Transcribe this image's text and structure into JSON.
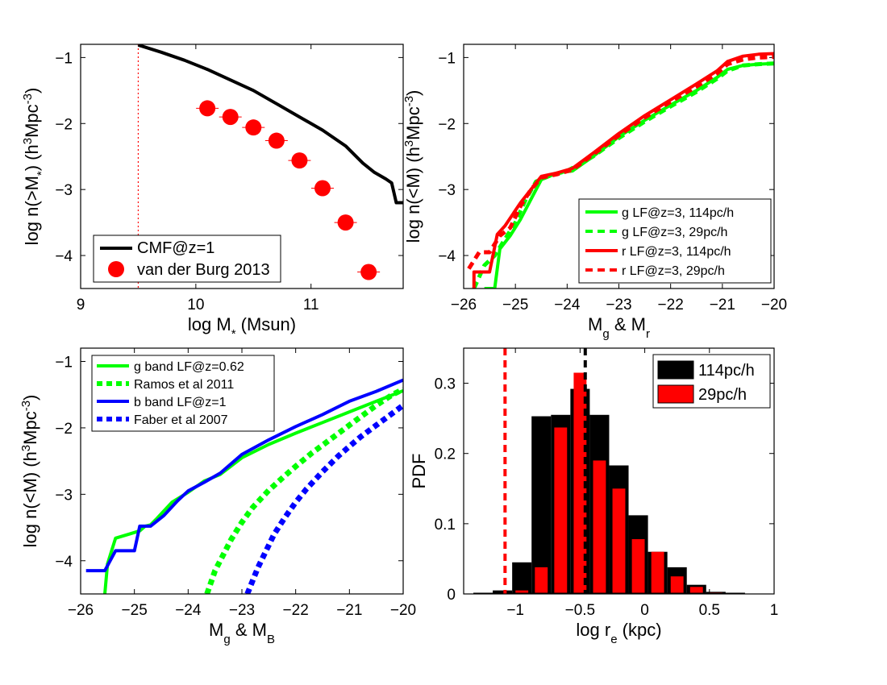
{
  "chart_data": [
    {
      "id": "cmf",
      "type": "line",
      "xlabel": "log M",
      "xlabel_sub": "*",
      "xlabel_rest": " (Msun)",
      "ylabel": "log n(>M",
      "ylabel_sub": "*",
      "ylabel_mid": ") (h",
      "ylabel_sup": "3",
      "ylabel_mid2": "Mpc",
      "ylabel_sup2": "-3",
      "ylabel_end": ")",
      "xlim": [
        9,
        11.8
      ],
      "ylim": [
        -4.5,
        -0.8
      ],
      "xticks": [
        9,
        10,
        11
      ],
      "xtick_labels": [
        "9",
        "10",
        "11"
      ],
      "yticks": [
        -4,
        -3,
        -2,
        -1
      ],
      "ytick_labels": [
        "−4",
        "−3",
        "−2",
        "−1"
      ],
      "vline": {
        "x": 9.5,
        "color": "#ff0000",
        "style": "dotted"
      },
      "series": [
        {
          "name": "CMF@z=1",
          "color": "#000000",
          "style": "solid",
          "kind": "line",
          "x": [
            9.5,
            9.7,
            9.9,
            10.1,
            10.3,
            10.5,
            10.7,
            10.9,
            11.1,
            11.3,
            11.45,
            11.55,
            11.65,
            11.7,
            11.72,
            11.74,
            11.8
          ],
          "y": [
            -0.81,
            -0.92,
            -1.04,
            -1.18,
            -1.34,
            -1.5,
            -1.7,
            -1.9,
            -2.1,
            -2.34,
            -2.6,
            -2.74,
            -2.84,
            -2.9,
            -3.05,
            -3.2,
            -3.2
          ]
        },
        {
          "name": "van der Burg 2013",
          "color": "#ff0000",
          "kind": "markers",
          "x": [
            10.1,
            10.3,
            10.5,
            10.7,
            10.9,
            11.1,
            11.3,
            11.5
          ],
          "y": [
            -1.77,
            -1.9,
            -2.06,
            -2.26,
            -2.56,
            -2.98,
            -3.5,
            -4.25
          ]
        }
      ],
      "legend": "bottom-left"
    },
    {
      "id": "lf_gr",
      "type": "line",
      "xlabel": "M",
      "xlabel_sub": "g",
      "xlabel_rest": " & M",
      "xlabel_sub2": "r",
      "ylabel": "log n(<M) (h",
      "ylabel_sup": "3",
      "ylabel_mid2": "Mpc",
      "ylabel_sup2": "-3",
      "ylabel_end": ")",
      "xlim": [
        -26,
        -20
      ],
      "ylim": [
        -4.5,
        -0.8
      ],
      "xticks": [
        -26,
        -25,
        -24,
        -23,
        -22,
        -21,
        -20
      ],
      "xtick_labels": [
        "−26",
        "−25",
        "−24",
        "−23",
        "−22",
        "−21",
        "−20"
      ],
      "yticks": [
        -4,
        -3,
        -2,
        -1
      ],
      "ytick_labels": [
        "−4",
        "−3",
        "−2",
        "−1"
      ],
      "series": [
        {
          "name": "g LF@z=3, 114pc/h",
          "color": "#00ff00",
          "style": "solid",
          "x": [
            -25.6,
            -25.4,
            -25.3,
            -25.1,
            -24.9,
            -24.7,
            -24.5,
            -24.2,
            -23.9,
            -23.5,
            -23,
            -22.5,
            -22,
            -21.5,
            -21.1,
            -20.9,
            -20.6,
            -20.3,
            -20
          ],
          "y": [
            -4.5,
            -4.5,
            -3.9,
            -3.7,
            -3.45,
            -3.15,
            -2.85,
            -2.75,
            -2.72,
            -2.5,
            -2.2,
            -1.95,
            -1.72,
            -1.5,
            -1.3,
            -1.18,
            -1.12,
            -1.1,
            -1.09
          ]
        },
        {
          "name": "g LF@z=3, 29pc/h",
          "color": "#00ff00",
          "style": "dashed",
          "x": [
            -25.8,
            -25.6,
            -25.4,
            -25.2,
            -25,
            -24.8,
            -24.6,
            -24.3,
            -24,
            -23.5,
            -23,
            -22.5,
            -22,
            -21.5,
            -21.1,
            -20.9,
            -20.6,
            -20.3,
            -20
          ],
          "y": [
            -4.5,
            -4.15,
            -4.0,
            -3.75,
            -3.5,
            -3.15,
            -2.88,
            -2.78,
            -2.72,
            -2.5,
            -2.22,
            -1.97,
            -1.74,
            -1.52,
            -1.32,
            -1.2,
            -1.12,
            -1.1,
            -1.09
          ]
        },
        {
          "name": "r LF@z=3, 114pc/h",
          "color": "#ff0000",
          "style": "solid",
          "x": [
            -25.8,
            -25.8,
            -25.5,
            -25.35,
            -25.2,
            -24.9,
            -24.7,
            -24.5,
            -24.2,
            -23.9,
            -23.5,
            -23,
            -22.5,
            -22,
            -21.5,
            -21.1,
            -20.9,
            -20.6,
            -20.3,
            -20
          ],
          "y": [
            -4.5,
            -4.25,
            -4.25,
            -3.68,
            -3.55,
            -3.2,
            -3.0,
            -2.8,
            -2.75,
            -2.68,
            -2.45,
            -2.15,
            -1.88,
            -1.64,
            -1.4,
            -1.2,
            -1.06,
            -0.98,
            -0.95,
            -0.94
          ]
        },
        {
          "name": "r LF@z=3, 29pc/h",
          "color": "#ff0000",
          "style": "dashed",
          "x": [
            -25.9,
            -25.7,
            -25.5,
            -25.3,
            -25.1,
            -24.9,
            -24.7,
            -24.5,
            -24.2,
            -23.9,
            -23.5,
            -23,
            -22.5,
            -22,
            -21.5,
            -21.1,
            -20.9,
            -20.6,
            -20.3,
            -20
          ],
          "y": [
            -4.2,
            -3.95,
            -3.95,
            -3.7,
            -3.58,
            -3.25,
            -3.0,
            -2.82,
            -2.77,
            -2.7,
            -2.47,
            -2.18,
            -1.91,
            -1.67,
            -1.44,
            -1.24,
            -1.1,
            -1.03,
            -1.0,
            -0.99
          ]
        }
      ],
      "legend": "bottom-right"
    },
    {
      "id": "lf_gb",
      "type": "line",
      "xlabel": "M",
      "xlabel_sub": "g",
      "xlabel_rest": " & M",
      "xlabel_sub2": "B",
      "ylabel": "log n(<M) (h",
      "ylabel_sup": "3",
      "ylabel_mid2": "Mpc",
      "ylabel_sup2": "-3",
      "ylabel_end": ")",
      "xlim": [
        -26,
        -20
      ],
      "ylim": [
        -4.5,
        -0.8
      ],
      "xticks": [
        -26,
        -25,
        -24,
        -23,
        -22,
        -21,
        -20
      ],
      "xtick_labels": [
        "−26",
        "−25",
        "−24",
        "−23",
        "−22",
        "−21",
        "−20"
      ],
      "yticks": [
        -4,
        -3,
        -2,
        -1
      ],
      "ytick_labels": [
        "−4",
        "−3",
        "−2",
        "−1"
      ],
      "series": [
        {
          "name": "g band LF@z=0.62",
          "color": "#00ff00",
          "style": "solid",
          "x": [
            -25.55,
            -25.5,
            -25.35,
            -25.1,
            -24.9,
            -24.8,
            -24.7,
            -24.6,
            -24.3,
            -24.0,
            -23.7,
            -23.4,
            -23.0,
            -22.5,
            -22.0,
            -21.5,
            -21.0,
            -20.5,
            -20.0
          ],
          "y": [
            -4.5,
            -4.05,
            -3.66,
            -3.6,
            -3.55,
            -3.48,
            -3.46,
            -3.38,
            -3.12,
            -2.97,
            -2.8,
            -2.7,
            -2.45,
            -2.25,
            -2.08,
            -1.92,
            -1.76,
            -1.6,
            -1.44
          ]
        },
        {
          "name": "Ramos et al 2011",
          "color": "#00ff00",
          "style": "dashed",
          "x": [
            -23.65,
            -23.5,
            -23.2,
            -23.0,
            -22.8,
            -22.5,
            -22.2,
            -22.0,
            -21.7,
            -21.5,
            -21.2,
            -21.0,
            -20.7,
            -20.5,
            -20.2,
            -20.0
          ],
          "y": [
            -4.5,
            -4.15,
            -3.68,
            -3.42,
            -3.2,
            -2.94,
            -2.72,
            -2.58,
            -2.38,
            -2.26,
            -2.08,
            -1.96,
            -1.78,
            -1.66,
            -1.5,
            -1.42
          ]
        },
        {
          "name": "b band LF@z=1",
          "color": "#0000ff",
          "style": "solid",
          "x": [
            -25.9,
            -25.55,
            -25.35,
            -25.0,
            -24.9,
            -24.7,
            -24.45,
            -24.2,
            -24.0,
            -23.7,
            -23.4,
            -23.0,
            -22.5,
            -22.0,
            -21.5,
            -21.0,
            -20.5,
            -20.0
          ],
          "y": [
            -4.15,
            -4.15,
            -3.85,
            -3.85,
            -3.48,
            -3.48,
            -3.32,
            -3.1,
            -2.95,
            -2.82,
            -2.68,
            -2.4,
            -2.18,
            -1.98,
            -1.8,
            -1.6,
            -1.45,
            -1.28
          ]
        },
        {
          "name": "Faber et al 2007",
          "color": "#0000ff",
          "style": "dashed",
          "x": [
            -22.9,
            -22.7,
            -22.4,
            -22.2,
            -22.0,
            -21.8,
            -21.5,
            -21.2,
            -21.0,
            -20.8,
            -20.5,
            -20.2,
            -20.0
          ],
          "y": [
            -4.5,
            -4.1,
            -3.6,
            -3.35,
            -3.12,
            -2.92,
            -2.66,
            -2.42,
            -2.28,
            -2.14,
            -1.96,
            -1.78,
            -1.66
          ]
        }
      ],
      "legend": "top-left"
    },
    {
      "id": "re_pdf",
      "type": "bar",
      "xlabel": "log r",
      "xlabel_sub": "e",
      "xlabel_rest": " (kpc)",
      "ylabel": "PDF",
      "xlim": [
        -1.4,
        1.0
      ],
      "ylim": [
        0,
        0.35
      ],
      "xticks": [
        -1,
        -0.5,
        0,
        0.5,
        1
      ],
      "xtick_labels": [
        "−1",
        "−0.5",
        "0",
        "0.5",
        "1"
      ],
      "yticks": [
        0,
        0.1,
        0.2,
        0.3
      ],
      "ytick_labels": [
        "0",
        "0.1",
        "0.2",
        "0.3"
      ],
      "bin_width": 0.15,
      "series": [
        {
          "name": "114pc/h",
          "color": "#000000",
          "centers": [
            -1.25,
            -1.1,
            -0.95,
            -0.8,
            -0.65,
            -0.5,
            -0.35,
            -0.2,
            -0.05,
            0.1,
            0.25,
            0.4,
            0.55,
            0.7
          ],
          "values": [
            0.0,
            0.005,
            0.045,
            0.253,
            0.255,
            0.292,
            0.255,
            0.183,
            0.112,
            0.06,
            0.038,
            0.013,
            0.003,
            0.0
          ]
        },
        {
          "name": "29pc/h",
          "color": "#ff0000",
          "centers": [
            -1.25,
            -1.1,
            -0.95,
            -0.8,
            -0.65,
            -0.5,
            -0.35,
            -0.2,
            -0.05,
            0.1,
            0.25,
            0.4,
            0.55,
            0.7
          ],
          "values": [
            0.0,
            0.0,
            0.005,
            0.038,
            0.237,
            0.315,
            0.19,
            0.15,
            0.078,
            0.06,
            0.025,
            0.01,
            0.002,
            0.001
          ]
        }
      ],
      "vlines": [
        {
          "x": -1.08,
          "color": "#ff0000",
          "style": "dashed"
        },
        {
          "x": -0.46,
          "color": "#000000",
          "style": "dashed"
        }
      ],
      "legend": "top-right"
    }
  ]
}
